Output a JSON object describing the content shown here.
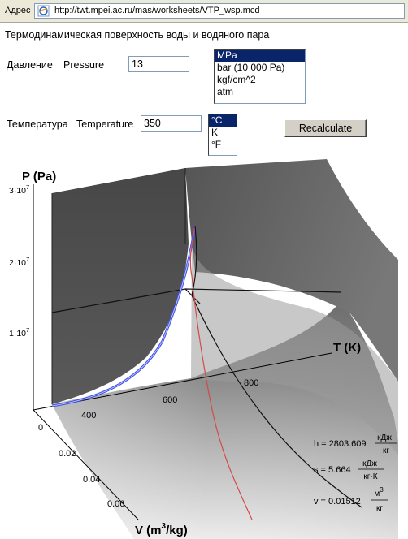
{
  "browser": {
    "address_label": "Адрес",
    "url": "http://twt.mpei.ac.ru/mas/worksheets/VTP_wsp.mcd"
  },
  "page": {
    "title": "Термодинамическая поверхность воды и водяного пара"
  },
  "pressure": {
    "label_ru": "Давление",
    "label_en": "Pressure",
    "value": "13",
    "units": [
      "MPa",
      "bar (10 000 Pa)",
      "kgf/cm^2",
      "atm"
    ],
    "selected_unit": "MPa"
  },
  "temperature": {
    "label_ru": "Температура",
    "label_en": "Temperature",
    "value": "350",
    "units": [
      "°C",
      "K",
      "°F"
    ],
    "selected_unit": "°C"
  },
  "recalculate_label": "Recalculate",
  "plot": {
    "z_axis_label": "P (Pa)",
    "x_axis_label": "T (K)",
    "y_axis_label": "V (m",
    "y_axis_label_sup": "3",
    "y_axis_label_tail": "/kg)",
    "z_ticks": [
      {
        "mant": "1·10",
        "exp": "7"
      },
      {
        "mant": "2·10",
        "exp": "7"
      },
      {
        "mant": "3·10",
        "exp": "7"
      }
    ],
    "x_ticks": [
      "400",
      "600",
      "800"
    ],
    "y_ticks": [
      "0",
      "0.02",
      "0.04",
      "0.06"
    ],
    "results": {
      "h": {
        "lhs": "h = 2803.609",
        "num": "кДж",
        "den": "кг"
      },
      "s": {
        "lhs": "s = 5.664",
        "num": "кДж",
        "den": "кг·К"
      },
      "v": {
        "lhs": "v = 0.01512",
        "num": "м",
        "num_sup": "3",
        "den": "кг"
      }
    }
  }
}
